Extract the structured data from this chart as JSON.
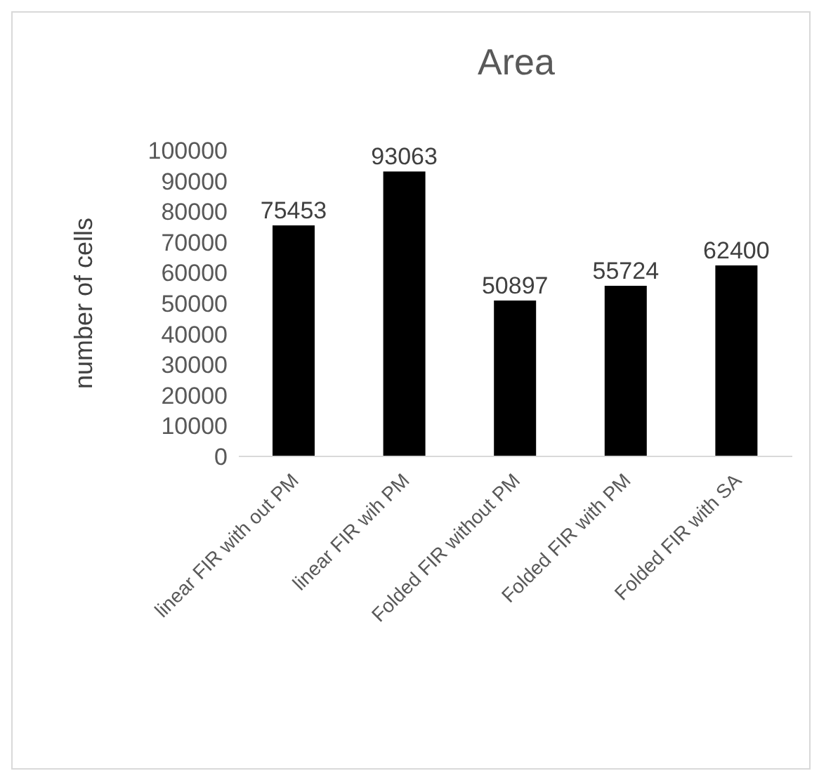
{
  "chart_data": {
    "type": "bar",
    "title": "Area",
    "ylabel": "number of cells",
    "categories": [
      "linear FIR with out PM",
      "linear FIR wih PM",
      "Folded FIR without PM",
      "Folded FIR with PM",
      "Folded FIR with SA"
    ],
    "values": [
      75453,
      93063,
      50897,
      55724,
      62400
    ],
    "color": "#000000",
    "ylim": [
      0,
      100000
    ],
    "yticks": [
      0,
      10000,
      20000,
      30000,
      40000,
      50000,
      60000,
      70000,
      80000,
      90000,
      100000
    ],
    "grid": false,
    "legend": false,
    "data_labels": true
  }
}
